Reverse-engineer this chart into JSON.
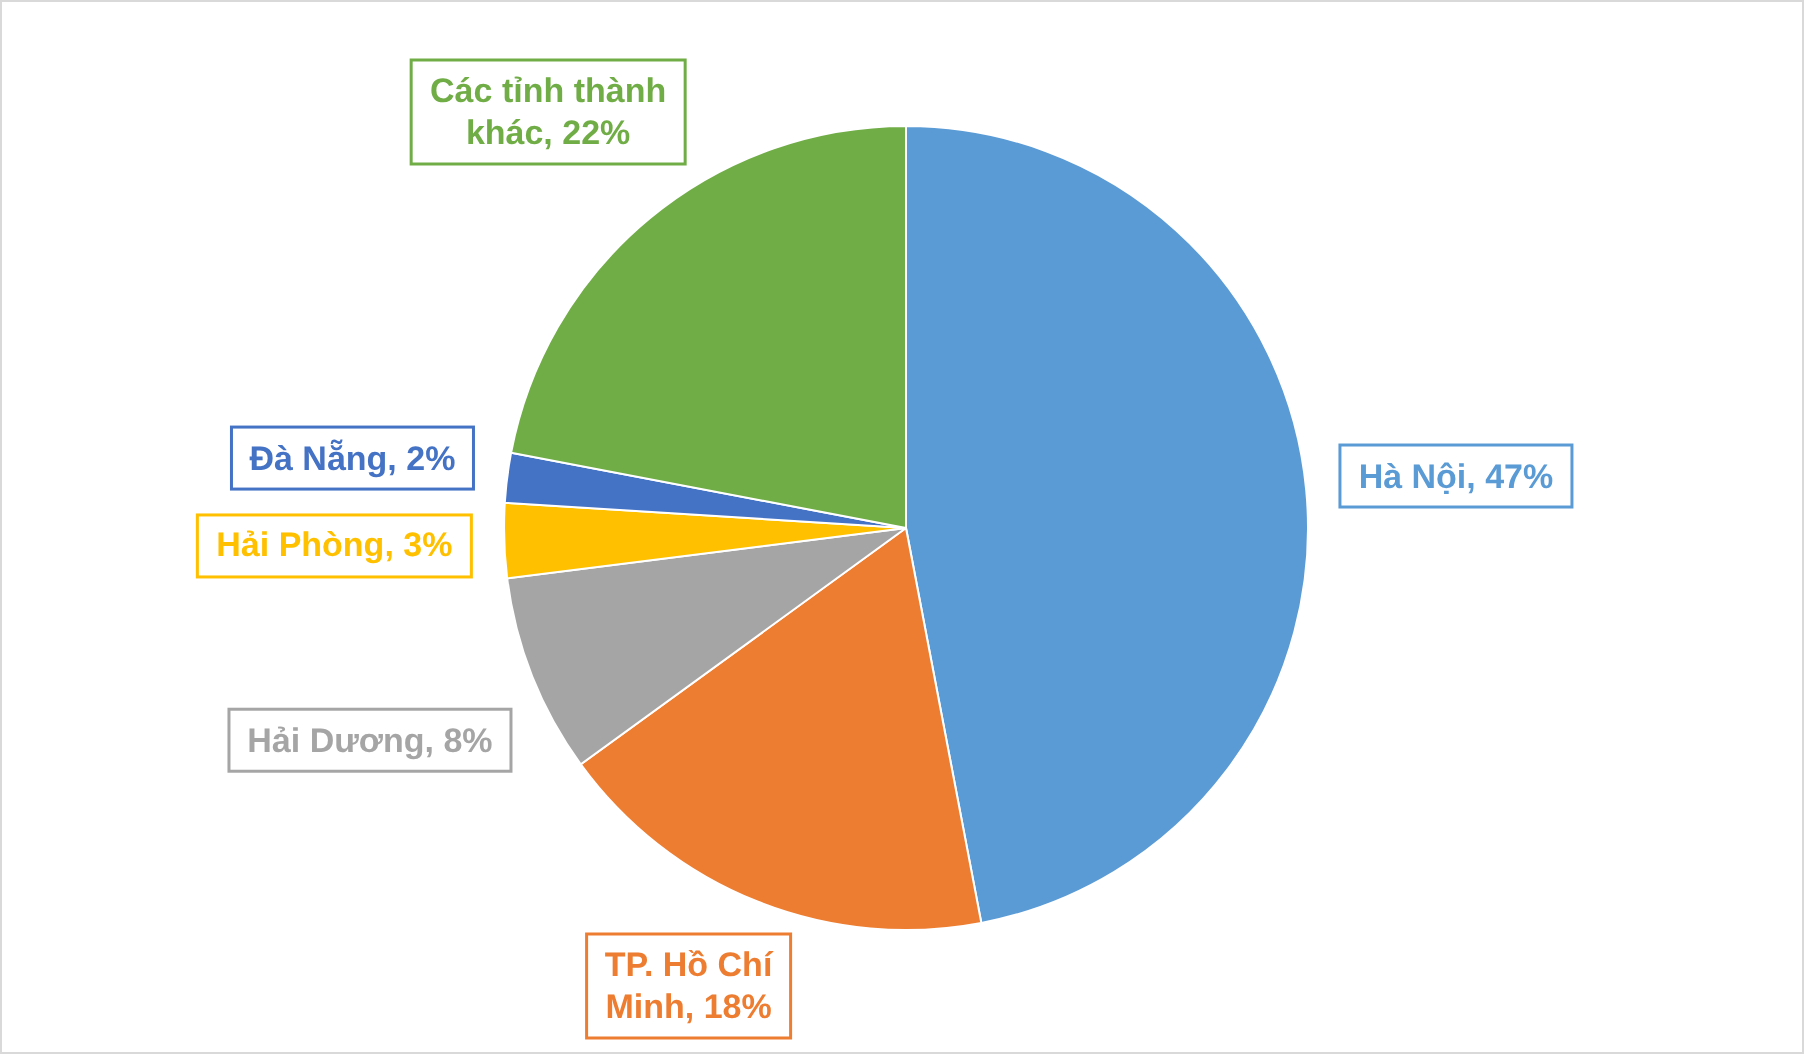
{
  "chart_data": {
    "type": "pie",
    "categories": [
      "Hà Nội",
      "TP. Hồ Chí Minh",
      "Hải Dương",
      "Hải Phòng",
      "Đà Nẵng",
      "Các tỉnh thành khác"
    ],
    "values": [
      47,
      18,
      8,
      3,
      2,
      22
    ],
    "colors": [
      "#5b9bd5",
      "#ed7d31",
      "#a5a5a5",
      "#ffc000",
      "#4472c4",
      "#70ad47"
    ],
    "value_labels": [
      "47%",
      "18%",
      "8%",
      "3%",
      "2%",
      "22%"
    ]
  }
}
